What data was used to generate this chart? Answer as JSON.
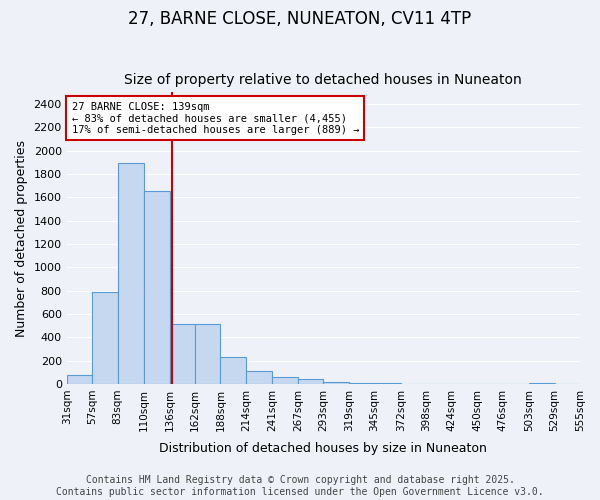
{
  "title": "27, BARNE CLOSE, NUNEATON, CV11 4TP",
  "subtitle": "Size of property relative to detached houses in Nuneaton",
  "xlabel": "Distribution of detached houses by size in Nuneaton",
  "ylabel": "Number of detached properties",
  "footer_line1": "Contains HM Land Registry data © Crown copyright and database right 2025.",
  "footer_line2": "Contains public sector information licensed under the Open Government Licence v3.0.",
  "bar_edges": [
    31,
    57,
    83,
    110,
    136,
    162,
    188,
    214,
    241,
    267,
    293,
    319,
    345,
    372,
    398,
    424,
    450,
    476,
    503,
    529,
    555
  ],
  "bar_heights": [
    75,
    790,
    1890,
    1650,
    510,
    510,
    230,
    110,
    60,
    40,
    20,
    5,
    5,
    0,
    0,
    0,
    0,
    0,
    5,
    0
  ],
  "bar_color": "#c5d8f0",
  "bar_edge_color": "#5b9bd5",
  "bar_linewidth": 0.8,
  "property_size": 139,
  "property_line_color": "#cc0000",
  "annotation_text": "27 BARNE CLOSE: 139sqm\n← 83% of detached houses are smaller (4,455)\n17% of semi-detached houses are larger (889) →",
  "annotation_box_color": "#cc0000",
  "ylim": [
    0,
    2500
  ],
  "yticks": [
    0,
    200,
    400,
    600,
    800,
    1000,
    1200,
    1400,
    1600,
    1800,
    2000,
    2200,
    2400
  ],
  "background_color": "#eef2f8",
  "grid_color": "#ffffff",
  "tick_labels": [
    "31sqm",
    "57sqm",
    "83sqm",
    "110sqm",
    "136sqm",
    "162sqm",
    "188sqm",
    "214sqm",
    "241sqm",
    "267sqm",
    "293sqm",
    "319sqm",
    "345sqm",
    "372sqm",
    "398sqm",
    "424sqm",
    "450sqm",
    "476sqm",
    "503sqm",
    "529sqm",
    "555sqm"
  ],
  "title_fontsize": 12,
  "subtitle_fontsize": 10,
  "label_fontsize": 9,
  "tick_fontsize": 7.5,
  "footer_fontsize": 7
}
